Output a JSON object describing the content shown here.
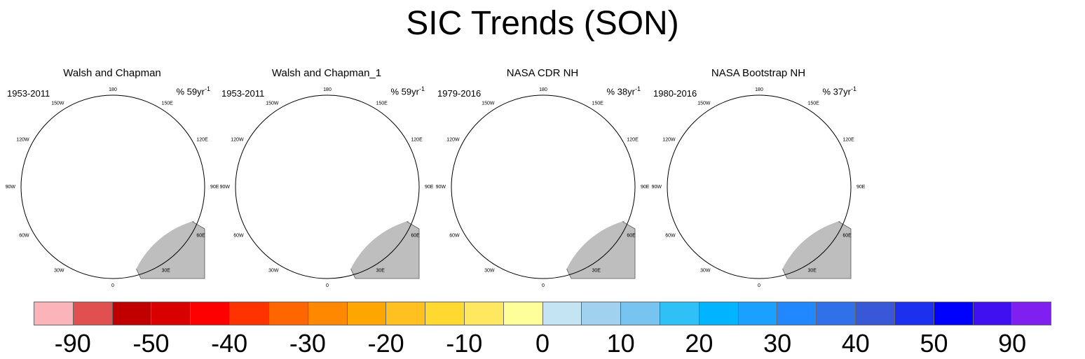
{
  "title": "SIC Trends (SON)",
  "chart_data": {
    "type": "heatmap",
    "projection": "north-polar-stereographic",
    "panels": [
      {
        "title": "Walsh and Chapman",
        "years": "1953-2011",
        "trend_prefix": "% 59yr",
        "trend_exp": "-1",
        "pattern": "wc"
      },
      {
        "title": "Walsh and Chapman_1",
        "years": "1953-2011",
        "trend_prefix": "% 59yr",
        "trend_exp": "-1",
        "pattern": "wc"
      },
      {
        "title": "NASA CDR NH",
        "years": "1979-2016",
        "trend_prefix": "% 38yr",
        "trend_exp": "-1",
        "pattern": "nasa"
      },
      {
        "title": "NASA Bootstrap NH",
        "years": "1980-2016",
        "trend_prefix": "% 37yr",
        "trend_exp": "-1",
        "pattern": "nasa"
      }
    ],
    "longitude_labels": [
      "180",
      "150E",
      "120E",
      "90E",
      "60E",
      "30E",
      "0",
      "30W",
      "60W",
      "90W",
      "120W",
      "150W"
    ],
    "colorbar": {
      "colors": [
        "#fbb4b9",
        "#e05050",
        "#c00000",
        "#d80000",
        "#ff0000",
        "#ff3300",
        "#ff6600",
        "#ff8800",
        "#ffa500",
        "#ffc020",
        "#ffd830",
        "#ffe860",
        "#ffff99",
        "#c4e4f4",
        "#a0d2f0",
        "#78c4f0",
        "#30c0f8",
        "#00b4ff",
        "#1aa0ff",
        "#2288ff",
        "#3070e8",
        "#3858d8",
        "#1c30f0",
        "#0000ff",
        "#4010f0",
        "#8020f0"
      ],
      "tick_labels": [
        "-90",
        "-50",
        "-40",
        "-30",
        "-20",
        "-10",
        "0",
        "10",
        "20",
        "30",
        "40",
        "50",
        "90"
      ]
    },
    "colors": {
      "land": "#bebebe",
      "ocean": "#ffffff",
      "coast": "#555555"
    }
  }
}
